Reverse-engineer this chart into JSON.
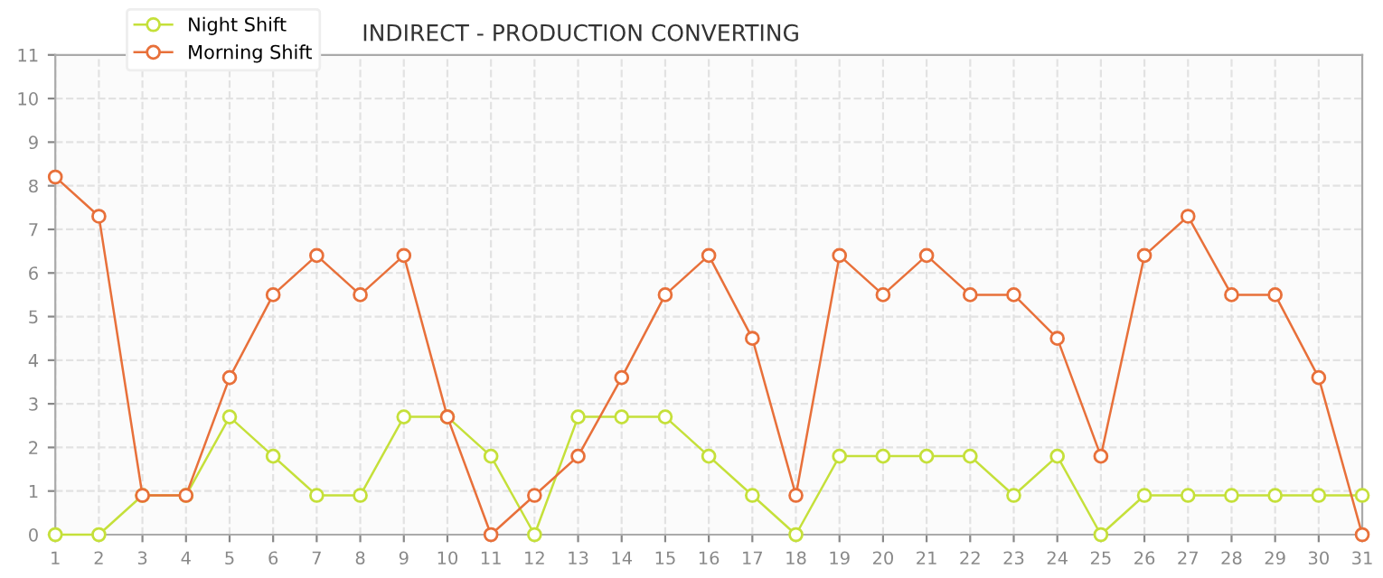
{
  "chart_data": {
    "type": "line",
    "title": "INDIRECT - PRODUCTION CONVERTING",
    "x": [
      1,
      2,
      3,
      4,
      5,
      6,
      7,
      8,
      9,
      10,
      11,
      12,
      13,
      14,
      15,
      16,
      17,
      18,
      19,
      20,
      21,
      22,
      23,
      24,
      25,
      26,
      27,
      28,
      29,
      30,
      31
    ],
    "series": [
      {
        "name": "Night Shift",
        "color": "#c5e03a",
        "values": [
          0,
          0,
          0.9,
          0.9,
          2.7,
          1.8,
          0.9,
          0.9,
          2.7,
          2.7,
          1.8,
          0,
          2.7,
          2.7,
          2.7,
          1.8,
          0.9,
          0,
          1.8,
          1.8,
          1.8,
          1.8,
          0.9,
          1.8,
          0,
          0.9,
          0.9,
          0.9,
          0.9,
          0.9,
          0.9
        ]
      },
      {
        "name": "Morning Shift",
        "color": "#e8703a",
        "values": [
          8.2,
          7.3,
          0.9,
          0.9,
          3.6,
          5.5,
          6.4,
          5.5,
          6.4,
          2.7,
          0,
          0.9,
          1.8,
          3.6,
          5.5,
          6.4,
          4.5,
          0.9,
          6.4,
          5.5,
          6.4,
          5.5,
          5.5,
          4.5,
          1.8,
          6.4,
          7.3,
          5.5,
          5.5,
          3.6,
          0
        ]
      }
    ],
    "xlim": [
      1,
      31
    ],
    "xticks": [
      1,
      2,
      3,
      4,
      5,
      6,
      7,
      8,
      9,
      10,
      11,
      12,
      13,
      14,
      15,
      16,
      17,
      18,
      19,
      20,
      21,
      22,
      23,
      24,
      25,
      26,
      27,
      28,
      29,
      30,
      31
    ],
    "ylim": [
      0,
      11
    ],
    "yticks": [
      0,
      1,
      2,
      3,
      4,
      5,
      6,
      7,
      8,
      9,
      10,
      11
    ],
    "grid": true,
    "legend": "top left",
    "marker": "circle",
    "line_style": "solid"
  }
}
